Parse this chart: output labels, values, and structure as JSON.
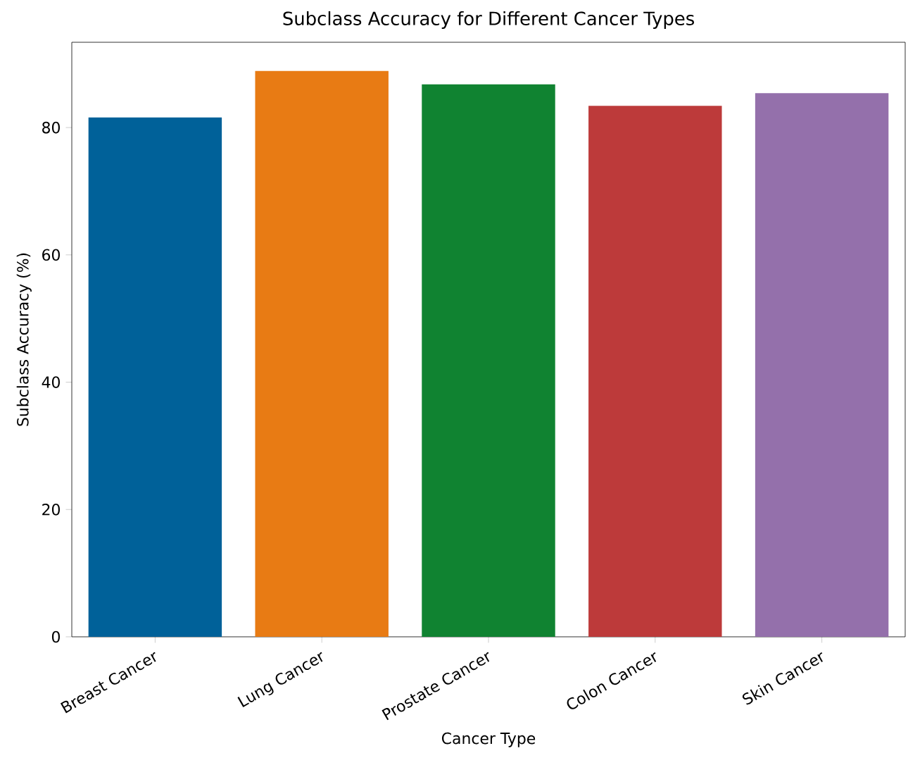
{
  "chart_data": {
    "type": "bar",
    "title": "Subclass Accuracy for Different Cancer Types",
    "xlabel": "Cancer Type",
    "ylabel": "Subclass Accuracy (%)",
    "categories": [
      "Breast Cancer",
      "Lung Cancer",
      "Prostate Cancer",
      "Colon Cancer",
      "Skin Cancer"
    ],
    "values": [
      81.6,
      88.9,
      86.8,
      83.4,
      85.4
    ],
    "colors": [
      "#006199",
      "#e87b14",
      "#108331",
      "#bd3a3a",
      "#9470ab"
    ],
    "ylim": [
      0,
      93.4
    ],
    "yticks": [
      0,
      20,
      40,
      60,
      80
    ]
  }
}
